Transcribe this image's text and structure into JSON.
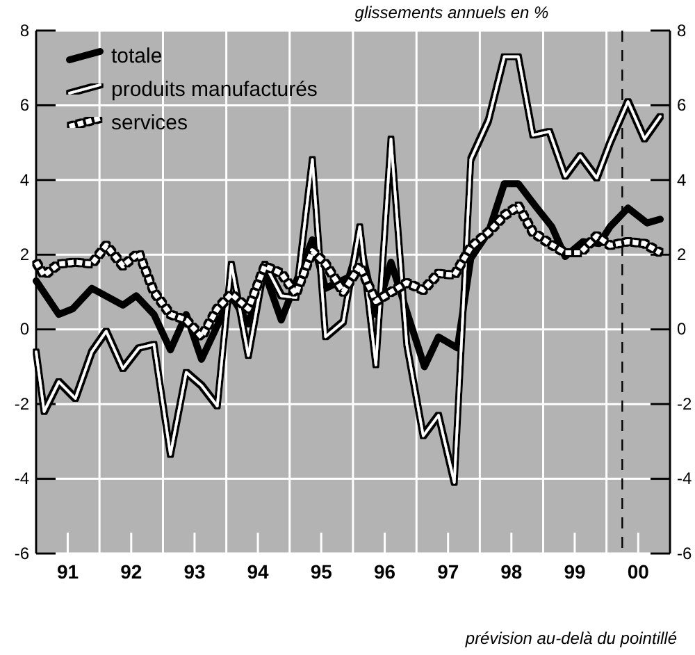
{
  "chart_data": {
    "type": "line",
    "title": "glissements annuels en %",
    "annotations": [
      "prévision au-delà du pointillé"
    ],
    "xlim": [
      "1991-01-01",
      "2001-01-01"
    ],
    "xticks": [
      {
        "value": "1991-01-01",
        "label": null
      },
      {
        "value": "1991-07-02",
        "label": "91"
      },
      {
        "value": "1992-01-01",
        "label": null
      },
      {
        "value": "1992-07-02",
        "label": "92"
      },
      {
        "value": "1993-01-01",
        "label": null
      },
      {
        "value": "1993-07-02",
        "label": "93"
      },
      {
        "value": "1994-01-01",
        "label": null
      },
      {
        "value": "1994-07-02",
        "label": "94"
      },
      {
        "value": "1995-01-01",
        "label": null
      },
      {
        "value": "1995-07-02",
        "label": "95"
      },
      {
        "value": "1996-01-01",
        "label": null
      },
      {
        "value": "1996-07-02",
        "label": "96"
      },
      {
        "value": "1997-01-01",
        "label": null
      },
      {
        "value": "1997-07-02",
        "label": "97"
      },
      {
        "value": "1998-01-01",
        "label": null
      },
      {
        "value": "1998-07-02",
        "label": "98"
      },
      {
        "value": "1999-01-01",
        "label": null
      },
      {
        "value": "1999-07-02",
        "label": "99"
      },
      {
        "value": "2000-01-01",
        "label": null
      },
      {
        "value": "2000-07-02",
        "label": "00"
      },
      {
        "value": "2001-01-01",
        "label": null
      }
    ],
    "ylim": [
      -6,
      8
    ],
    "yticks": [
      -6,
      -4,
      -2,
      0,
      2,
      4,
      6,
      8
    ],
    "y2lim": [
      -6,
      8
    ],
    "y2ticks": [
      -6,
      -4,
      -2,
      0,
      2,
      4,
      6,
      8
    ],
    "grid": true,
    "legend": "top left",
    "ref_lines": [
      {
        "axis": "x",
        "value": "2000-04-01",
        "line_style": "dashed",
        "color": "#000000"
      }
    ],
    "series": [
      {
        "name": "totale",
        "color": "#000000",
        "line_style": "solid",
        "x": [
          "1991-01-01",
          "1991-05-12",
          "1991-07-31",
          "1991-11-18",
          "1992-05-15",
          "1992-07-31",
          "1992-11-10",
          "1993-02-13",
          "1993-05-15",
          "1993-08-11",
          "1993-11-10",
          "1994-01-30",
          "1994-05-08",
          "1994-08-11",
          "1994-11-14",
          "1995-05-12",
          "1995-07-27",
          "1995-12-09",
          "1996-02-09",
          "1996-05-12",
          "1996-08-07",
          "1997-02-16",
          "1997-05-08",
          "1997-08-25",
          "1997-11-10",
          "1998-02-20",
          "1998-05-22",
          "1998-08-11",
          "1998-11-18",
          "1999-02-20",
          "1999-05-08",
          "1999-08-18",
          "1999-11-21",
          "2000-01-22",
          "2000-05-04",
          "2000-08-22",
          "2000-11-06"
        ],
        "values": [
          1.3,
          0.4,
          0.55,
          1.1,
          0.65,
          0.9,
          0.4,
          -0.55,
          0.4,
          -0.8,
          0.1,
          0.9,
          0.15,
          1.5,
          0.25,
          2.4,
          1.1,
          1.4,
          2.35,
          0.4,
          1.8,
          -1.0,
          -0.2,
          -0.5,
          1.9,
          2.6,
          3.9,
          3.9,
          3.3,
          2.75,
          1.95,
          2.35,
          2.3,
          2.75,
          3.25,
          2.85,
          2.95
        ]
      },
      {
        "name": "produits manufacturés",
        "color": "#ffffff",
        "line_style": "solid",
        "x": [
          "1991-01-01",
          "1991-02-16",
          "1991-05-12",
          "1991-08-15",
          "1991-11-18",
          "1992-02-09",
          "1992-05-15",
          "1992-08-15",
          "1992-11-10",
          "1993-02-13",
          "1993-05-15",
          "1993-08-11",
          "1993-11-10",
          "1994-01-30",
          "1994-05-08",
          "1994-08-11",
          "1994-11-14",
          "1995-02-06",
          "1995-05-12",
          "1995-07-27",
          "1995-11-06",
          "1996-02-09",
          "1996-05-12",
          "1996-08-07",
          "1996-11-06",
          "1997-02-09",
          "1997-05-08",
          "1997-08-07",
          "1997-11-10",
          "1998-02-20",
          "1998-05-22",
          "1998-08-11",
          "1998-11-03",
          "1999-02-06",
          "1999-05-08",
          "1999-08-03",
          "1999-11-06",
          "2000-01-22",
          "2000-05-04",
          "2000-08-07",
          "2000-11-06"
        ],
        "values": [
          -0.6,
          -2.2,
          -1.4,
          -1.85,
          -0.6,
          -0.05,
          -1.05,
          -0.5,
          -0.4,
          -3.35,
          -1.15,
          -1.5,
          -2.05,
          1.75,
          -0.7,
          1.75,
          0.9,
          0.85,
          4.55,
          -0.2,
          0.2,
          2.75,
          -0.95,
          5.1,
          -0.4,
          -2.85,
          -2.3,
          -4.1,
          4.55,
          5.6,
          7.3,
          7.3,
          5.2,
          5.3,
          4.1,
          4.65,
          4.05,
          5.0,
          6.1,
          5.1,
          5.7
        ]
      },
      {
        "name": "services",
        "color": "#ffffff",
        "line_style": "dotted",
        "x": [
          "1991-01-01",
          "1991-02-16",
          "1991-05-12",
          "1991-08-15",
          "1991-11-18",
          "1992-02-09",
          "1992-05-15",
          "1992-08-15",
          "1992-11-10",
          "1993-02-13",
          "1993-05-15",
          "1993-08-11",
          "1993-11-10",
          "1994-01-30",
          "1994-05-08",
          "1994-08-11",
          "1994-11-14",
          "1995-02-06",
          "1995-05-12",
          "1995-07-27",
          "1995-11-06",
          "1996-02-09",
          "1996-05-12",
          "1996-08-07",
          "1996-11-06",
          "1997-02-09",
          "1997-05-08",
          "1997-08-07",
          "1997-11-10",
          "1998-02-20",
          "1998-05-22",
          "1998-08-11",
          "1998-11-03",
          "1999-02-06",
          "1999-05-08",
          "1999-08-03",
          "1999-11-06",
          "2000-01-22",
          "2000-05-04",
          "2000-08-07",
          "2000-11-06"
        ],
        "values": [
          1.8,
          1.45,
          1.75,
          1.8,
          1.75,
          2.25,
          1.7,
          2.05,
          1.0,
          0.4,
          0.25,
          -0.2,
          0.55,
          0.95,
          0.55,
          1.7,
          1.5,
          0.95,
          2.1,
          1.75,
          1.0,
          1.7,
          0.75,
          1.0,
          1.25,
          1.05,
          1.5,
          1.45,
          2.2,
          2.6,
          3.05,
          3.3,
          2.6,
          2.3,
          2.05,
          2.05,
          2.5,
          2.25,
          2.35,
          2.3,
          2.05
        ]
      }
    ]
  }
}
